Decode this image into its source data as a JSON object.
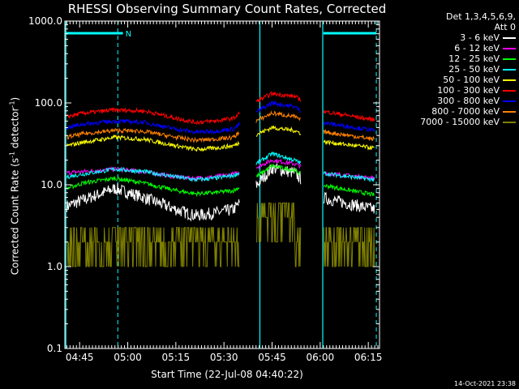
{
  "chart_data": {
    "type": "line",
    "title": "RHESSI Observing Summary Count Rates, Corrected",
    "xlabel": "Start Time (22-Jul-08 04:40:22)",
    "ylabel_main": "Corrected Count Rate (s",
    "ylabel_sup1": "-1",
    "ylabel_mid": " detector",
    "ylabel_sup2": "-1",
    "ylabel_end": ")",
    "yscale": "log",
    "ylim": [
      0.1,
      1000.0
    ],
    "y_ticks": [
      "0.1",
      "1.0",
      "10.0",
      "100.0",
      "1000.0"
    ],
    "x_ticks": [
      "04:45",
      "05:00",
      "05:15",
      "05:30",
      "05:45",
      "06:00",
      "06:15"
    ],
    "x_tick_minutes": [
      285,
      300,
      315,
      330,
      345,
      360,
      375
    ],
    "xlim_minutes": [
      280.4,
      378.5
    ],
    "legend_header": [
      "Det 1,3,4,5,6,9,",
      "Att 0"
    ],
    "night_bars": [
      {
        "start": 280.4,
        "end": 298.5,
        "label": "N"
      },
      {
        "start": 361,
        "end": 377.5,
        "label": ""
      }
    ],
    "dashed_markers": [
      296.9,
      377.5
    ],
    "solid_markers": [
      280.7,
      341.2,
      360.8
    ],
    "series": [
      {
        "name": "3 - 6 keV",
        "color": "#ffffff",
        "level": [
          5.5,
          6.5,
          9.0,
          7.0,
          5.0,
          4.2,
          4.5,
          5.0,
          8.0,
          16.0,
          14.0,
          7.0,
          5.0
        ]
      },
      {
        "name": "6 - 12 keV",
        "color": "#ff00ff",
        "level": [
          14.0,
          14.5,
          15.5,
          14.5,
          12.5,
          12.0,
          12.5,
          13.5,
          15.0,
          20.0,
          18.0,
          14.0,
          12.0
        ]
      },
      {
        "name": "12 - 25 keV",
        "color": "#00ff00",
        "level": [
          9.0,
          10.5,
          12.0,
          10.5,
          8.5,
          7.8,
          8.0,
          8.5,
          11.0,
          17.0,
          15.0,
          10.0,
          7.5
        ]
      },
      {
        "name": "25 - 50 keV",
        "color": "#00ffff",
        "level": [
          12.5,
          13.5,
          15.5,
          14.5,
          12.5,
          11.5,
          12.0,
          13.0,
          16.0,
          24.0,
          20.0,
          14.0,
          11.5
        ]
      },
      {
        "name": "50 - 100 keV",
        "color": "#ffff00",
        "level": [
          30.0,
          33.0,
          38.0,
          36.0,
          30.0,
          27.0,
          28.0,
          30.0,
          38.0,
          50.0,
          46.0,
          34.0,
          28.0
        ]
      },
      {
        "name": "100 - 300 keV",
        "color": "#ff0000",
        "level": [
          68.0,
          75.0,
          82.0,
          80.0,
          65.0,
          58.0,
          60.0,
          65.0,
          95.0,
          130.0,
          120.0,
          80.0,
          62.0
        ]
      },
      {
        "name": "300 - 800 keV",
        "color": "#0000ff",
        "level": [
          50.0,
          55.0,
          60.0,
          58.0,
          48.0,
          44.0,
          45.0,
          48.0,
          70.0,
          100.0,
          90.0,
          58.0,
          46.0
        ]
      },
      {
        "name": "800 - 7000 keV",
        "color": "#ff8000",
        "level": [
          38.0,
          42.0,
          46.0,
          45.0,
          38.0,
          35.0,
          36.0,
          38.0,
          55.0,
          75.0,
          68.0,
          45.0,
          36.0
        ]
      },
      {
        "name": "7000 - 15000 keV",
        "color": "#808000",
        "level": [
          1.5,
          2.0,
          2.5,
          1.5,
          1.5,
          1.0,
          1.5,
          2.0,
          3.0,
          5.0,
          4.0,
          2.0,
          1.5
        ]
      }
    ],
    "series_times_minutes": [
      281,
      286,
      296,
      305,
      315,
      321,
      327,
      333,
      338,
      345,
      352,
      360,
      377
    ],
    "gap_minutes": [
      [
        335,
        340
      ],
      [
        354,
        361
      ]
    ],
    "grid": false,
    "legend_position": "top-right"
  },
  "footer_timestamp": "14-Oct-2021 23:38"
}
